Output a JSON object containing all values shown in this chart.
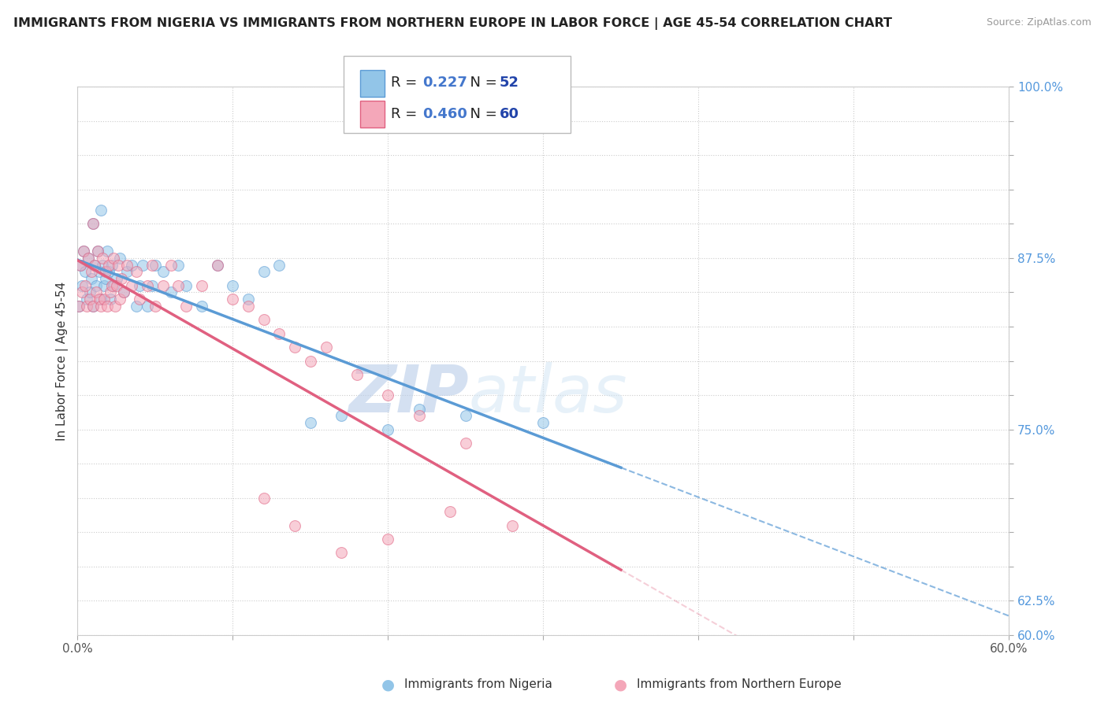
{
  "title": "IMMIGRANTS FROM NIGERIA VS IMMIGRANTS FROM NORTHERN EUROPE IN LABOR FORCE | AGE 45-54 CORRELATION CHART",
  "source": "Source: ZipAtlas.com",
  "ylabel": "In Labor Force | Age 45-54",
  "xlim": [
    0.0,
    0.6
  ],
  "ylim": [
    0.6,
    1.0
  ],
  "xtick_positions": [
    0.0,
    0.1,
    0.2,
    0.3,
    0.4,
    0.5,
    0.6
  ],
  "xtick_labels": [
    "0.0%",
    "",
    "",
    "",
    "",
    "",
    "60.0%"
  ],
  "ytick_positions": [
    0.6,
    0.625,
    0.65,
    0.675,
    0.7,
    0.725,
    0.75,
    0.775,
    0.8,
    0.825,
    0.85,
    0.875,
    0.9,
    0.925,
    0.95,
    0.975,
    1.0
  ],
  "ytick_labels": [
    "60.0%",
    "62.5%",
    "",
    "",
    "",
    "",
    "75.0%",
    "",
    "",
    "",
    "",
    "87.5%",
    "",
    "",
    "",
    "",
    "100.0%"
  ],
  "nigeria_color": "#92C5E8",
  "nigeria_edge": "#5B9BD5",
  "northern_europe_color": "#F4A7B9",
  "northern_europe_edge": "#E06080",
  "nigeria_R": 0.227,
  "nigeria_N": 52,
  "northern_europe_R": 0.46,
  "northern_europe_N": 60,
  "nigeria_line_color": "#5B9BD5",
  "northern_europe_line_color": "#E06080",
  "background_color": "#FFFFFF",
  "grid_color": "#CCCCCC",
  "watermark_zip_color": "#C8D8F0",
  "watermark_atlas_color": "#D8E8F8",
  "marker_size": 100,
  "alpha": 0.55,
  "nigeria_x": [
    0.001,
    0.002,
    0.003,
    0.004,
    0.005,
    0.006,
    0.007,
    0.008,
    0.009,
    0.01,
    0.01,
    0.011,
    0.012,
    0.013,
    0.014,
    0.015,
    0.015,
    0.016,
    0.017,
    0.018,
    0.019,
    0.02,
    0.021,
    0.022,
    0.023,
    0.025,
    0.027,
    0.03,
    0.032,
    0.035,
    0.038,
    0.04,
    0.042,
    0.045,
    0.048,
    0.05,
    0.055,
    0.06,
    0.065,
    0.07,
    0.08,
    0.09,
    0.1,
    0.11,
    0.12,
    0.13,
    0.15,
    0.17,
    0.2,
    0.22,
    0.25,
    0.3
  ],
  "nigeria_y": [
    0.84,
    0.87,
    0.855,
    0.88,
    0.865,
    0.845,
    0.875,
    0.85,
    0.86,
    0.84,
    0.9,
    0.87,
    0.855,
    0.88,
    0.865,
    0.845,
    0.91,
    0.87,
    0.855,
    0.86,
    0.88,
    0.865,
    0.845,
    0.87,
    0.855,
    0.86,
    0.875,
    0.85,
    0.865,
    0.87,
    0.84,
    0.855,
    0.87,
    0.84,
    0.855,
    0.87,
    0.865,
    0.85,
    0.87,
    0.855,
    0.84,
    0.87,
    0.855,
    0.845,
    0.865,
    0.87,
    0.755,
    0.76,
    0.75,
    0.765,
    0.76,
    0.755
  ],
  "northern_europe_x": [
    0.001,
    0.002,
    0.003,
    0.004,
    0.005,
    0.006,
    0.007,
    0.008,
    0.009,
    0.01,
    0.01,
    0.011,
    0.012,
    0.013,
    0.014,
    0.015,
    0.016,
    0.017,
    0.018,
    0.019,
    0.02,
    0.021,
    0.022,
    0.023,
    0.024,
    0.025,
    0.026,
    0.027,
    0.028,
    0.03,
    0.032,
    0.035,
    0.038,
    0.04,
    0.045,
    0.048,
    0.05,
    0.055,
    0.06,
    0.065,
    0.07,
    0.08,
    0.09,
    0.1,
    0.11,
    0.12,
    0.13,
    0.14,
    0.15,
    0.16,
    0.18,
    0.2,
    0.22,
    0.25,
    0.28,
    0.12,
    0.14,
    0.17,
    0.2,
    0.24
  ],
  "northern_europe_y": [
    0.84,
    0.87,
    0.85,
    0.88,
    0.855,
    0.84,
    0.875,
    0.845,
    0.865,
    0.84,
    0.9,
    0.87,
    0.85,
    0.88,
    0.845,
    0.84,
    0.875,
    0.845,
    0.865,
    0.84,
    0.87,
    0.85,
    0.855,
    0.875,
    0.84,
    0.855,
    0.87,
    0.845,
    0.86,
    0.85,
    0.87,
    0.855,
    0.865,
    0.845,
    0.855,
    0.87,
    0.84,
    0.855,
    0.87,
    0.855,
    0.84,
    0.855,
    0.87,
    0.845,
    0.84,
    0.83,
    0.82,
    0.81,
    0.8,
    0.81,
    0.79,
    0.775,
    0.76,
    0.74,
    0.68,
    0.7,
    0.68,
    0.66,
    0.67,
    0.69
  ],
  "legend_title_nigeria": "R = 0.227   N = 52",
  "legend_title_ne": "R = 0.460   N = 60"
}
